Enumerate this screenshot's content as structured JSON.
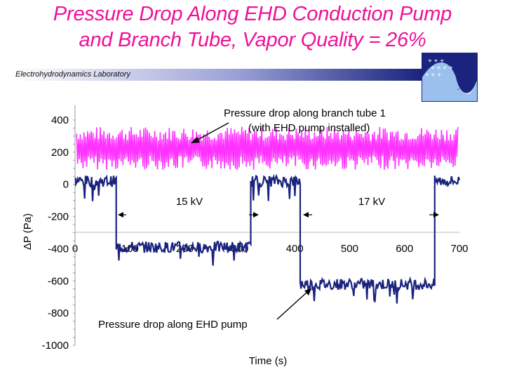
{
  "slide": {
    "title_line1": "Pressure Drop Along EHD Conduction Pump",
    "title_line2": "and Branch Tube, Vapor Quality = 26%",
    "lab_name": "Electrohydrodynamics Laboratory"
  },
  "colors": {
    "title": "#ee1199",
    "branch_series": "#ff33ff",
    "pump_series": "#1a237e",
    "banner_dark": "#1a237e"
  },
  "chart_data": {
    "type": "line",
    "xlabel": "Time (s)",
    "ylabel": "ΔP (Pa)",
    "xlim": [
      0,
      700
    ],
    "ylim": [
      -1000,
      400
    ],
    "x_ticks": [
      "0",
      "100",
      "200",
      "300",
      "400",
      "500",
      "600",
      "700"
    ],
    "y_ticks": [
      "400",
      "200",
      "0",
      "-200",
      "-400",
      "-600",
      "-800",
      "-1000"
    ],
    "grid": false,
    "series": [
      {
        "name": "Pressure drop along branch tube 1",
        "note": "(with EHD pump installed)",
        "level_pa": 200,
        "band_pa": [
          90,
          360
        ]
      },
      {
        "name": "Pressure drop along EHD pump",
        "steps": [
          {
            "t_start": 0,
            "t_end": 75,
            "level_pa": 20
          },
          {
            "t_start": 75,
            "t_end": 320,
            "level_pa": -390
          },
          {
            "t_start": 320,
            "t_end": 410,
            "level_pa": 20
          },
          {
            "t_start": 410,
            "t_end": 655,
            "level_pa": -620
          },
          {
            "t_start": 655,
            "t_end": 700,
            "level_pa": 20
          }
        ]
      }
    ],
    "annotations": [
      "15 kV",
      "17 kV"
    ]
  }
}
